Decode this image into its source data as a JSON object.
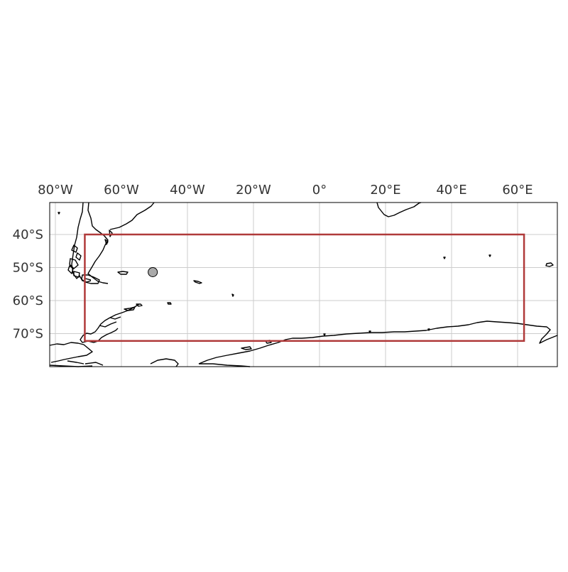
{
  "map": {
    "lon_ticks": [
      {
        "value": -80,
        "label": "80°W"
      },
      {
        "value": -60,
        "label": "60°W"
      },
      {
        "value": -40,
        "label": "40°W"
      },
      {
        "value": -20,
        "label": "20°W"
      },
      {
        "value": 0,
        "label": "0°"
      },
      {
        "value": 20,
        "label": "20°E"
      },
      {
        "value": 40,
        "label": "40°E"
      },
      {
        "value": 60,
        "label": "60°E"
      }
    ],
    "lat_ticks": [
      {
        "value": -40,
        "label": "40°S"
      },
      {
        "value": -50,
        "label": "50°S"
      },
      {
        "value": -60,
        "label": "60°S"
      },
      {
        "value": -70,
        "label": "70°S"
      }
    ],
    "extent": {
      "lon_min": -80,
      "lon_max": 72,
      "lat_min": -80,
      "lat_max": -30
    },
    "region_box": {
      "lon_min": -71,
      "lon_max": 62,
      "lat_min": -72,
      "lat_max": -40,
      "color": "#b03a3a"
    },
    "point_marker": {
      "lon": -49,
      "lat": -51.5,
      "fill": "#aaaaaa"
    },
    "grid": true,
    "colors": {
      "coast": "#000000",
      "grid": "#cccccc",
      "text": "#333333"
    }
  }
}
